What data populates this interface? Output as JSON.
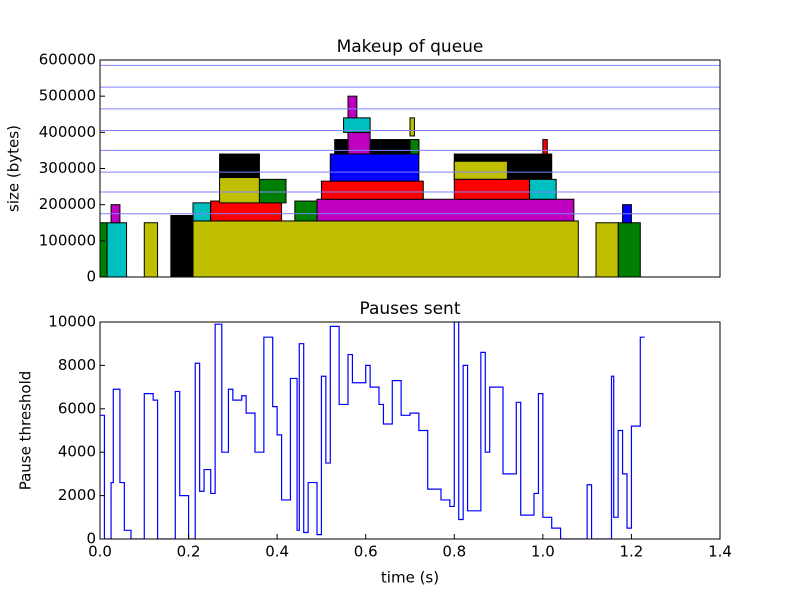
{
  "chart_data": [
    {
      "type": "blocks",
      "title": "Makeup of queue",
      "y_label": "size (bytes)",
      "xlim": [
        0,
        1.4
      ],
      "ylim": [
        0,
        600000
      ],
      "yticks": [
        0,
        100000,
        200000,
        300000,
        400000,
        500000,
        600000
      ],
      "hlines": {
        "color": "#8080ff",
        "values": [
          585000,
          525000,
          465000,
          405000,
          350000,
          290000,
          235000,
          175000
        ]
      },
      "blocks": [
        {
          "x": [
            0.0,
            0.016
          ],
          "y": [
            0,
            150000
          ],
          "color": "#008000"
        },
        {
          "x": [
            0.016,
            0.06
          ],
          "y": [
            0,
            150000
          ],
          "color": "#00bfbf"
        },
        {
          "x": [
            0.025,
            0.045
          ],
          "y": [
            150000,
            200000
          ],
          "color": "#bf00bf"
        },
        {
          "x": [
            0.1,
            0.13
          ],
          "y": [
            0,
            150000
          ],
          "color": "#bfbf00"
        },
        {
          "x": [
            0.16,
            0.21
          ],
          "y": [
            0,
            170000
          ],
          "color": "#000000"
        },
        {
          "x": [
            0.21,
            1.08
          ],
          "y": [
            0,
            155000
          ],
          "color": "#bfbf00"
        },
        {
          "x": [
            0.21,
            0.25
          ],
          "y": [
            155000,
            205000
          ],
          "color": "#00bfbf"
        },
        {
          "x": [
            0.25,
            0.41
          ],
          "y": [
            155000,
            210000
          ],
          "color": "#ff0000"
        },
        {
          "x": [
            0.44,
            0.49
          ],
          "y": [
            155000,
            210000
          ],
          "color": "#008000"
        },
        {
          "x": [
            0.49,
            1.07
          ],
          "y": [
            155000,
            215000
          ],
          "color": "#bf00bf"
        },
        {
          "x": [
            0.27,
            0.36
          ],
          "y": [
            275000,
            340000
          ],
          "color": "#000000"
        },
        {
          "x": [
            0.27,
            0.36
          ],
          "y": [
            205000,
            275000
          ],
          "color": "#bfbf00"
        },
        {
          "x": [
            0.36,
            0.42
          ],
          "y": [
            205000,
            270000
          ],
          "color": "#008000"
        },
        {
          "x": [
            0.53,
            0.72
          ],
          "y": [
            340000,
            380000
          ],
          "color": "#000000"
        },
        {
          "x": [
            0.5,
            0.73
          ],
          "y": [
            215000,
            265000
          ],
          "color": "#ff0000"
        },
        {
          "x": [
            0.52,
            0.72
          ],
          "y": [
            265000,
            340000
          ],
          "color": "#0000ff"
        },
        {
          "x": [
            0.56,
            0.61
          ],
          "y": [
            340000,
            400000
          ],
          "color": "#bf00bf"
        },
        {
          "x": [
            0.55,
            0.61
          ],
          "y": [
            400000,
            440000
          ],
          "color": "#00bfbf"
        },
        {
          "x": [
            0.56,
            0.58
          ],
          "y": [
            440000,
            500000
          ],
          "color": "#bf00bf"
        },
        {
          "x": [
            0.7,
            0.72
          ],
          "y": [
            340000,
            380000
          ],
          "color": "#008000"
        },
        {
          "x": [
            0.7,
            0.71
          ],
          "y": [
            390000,
            440000
          ],
          "color": "#bfbf00"
        },
        {
          "x": [
            0.8,
            1.02
          ],
          "y": [
            270000,
            340000
          ],
          "color": "#000000"
        },
        {
          "x": [
            0.8,
            0.92
          ],
          "y": [
            270000,
            320000
          ],
          "color": "#bfbf00"
        },
        {
          "x": [
            0.8,
            0.97
          ],
          "y": [
            215000,
            270000
          ],
          "color": "#ff0000"
        },
        {
          "x": [
            0.97,
            1.03
          ],
          "y": [
            215000,
            270000
          ],
          "color": "#00bfbf"
        },
        {
          "x": [
            1.0,
            1.01
          ],
          "y": [
            340000,
            380000
          ],
          "color": "#ff0000"
        },
        {
          "x": [
            1.17,
            1.22
          ],
          "y": [
            0,
            150000
          ],
          "color": "#008000"
        },
        {
          "x": [
            1.12,
            1.17
          ],
          "y": [
            0,
            150000
          ],
          "color": "#bfbf00"
        },
        {
          "x": [
            1.18,
            1.2
          ],
          "y": [
            150000,
            200000
          ],
          "color": "#0000ff"
        }
      ]
    },
    {
      "type": "line",
      "title": "Pauses sent",
      "y_label": "Pause threshold",
      "x_label": "time (s)",
      "step": "post",
      "xlim": [
        0,
        1.4
      ],
      "ylim": [
        0,
        10000
      ],
      "yticks": [
        0,
        2000,
        4000,
        6000,
        8000,
        10000
      ],
      "xticks": [
        {
          "value": 0,
          "label": "0.0"
        },
        0.2,
        0.4,
        0.6,
        0.8,
        {
          "value": 1,
          "label": "1.0"
        },
        1.2,
        1.4
      ],
      "x": [
        0.0,
        0.01,
        0.025,
        0.03,
        0.045,
        0.055,
        0.07,
        0.1,
        0.12,
        0.13,
        0.17,
        0.18,
        0.2,
        0.215,
        0.225,
        0.235,
        0.25,
        0.26,
        0.275,
        0.29,
        0.3,
        0.32,
        0.33,
        0.35,
        0.37,
        0.39,
        0.4,
        0.41,
        0.43,
        0.445,
        0.45,
        0.46,
        0.47,
        0.49,
        0.5,
        0.51,
        0.52,
        0.54,
        0.56,
        0.57,
        0.6,
        0.61,
        0.63,
        0.64,
        0.66,
        0.68,
        0.7,
        0.72,
        0.74,
        0.77,
        0.79,
        0.8,
        0.81,
        0.82,
        0.83,
        0.86,
        0.87,
        0.88,
        0.91,
        0.94,
        0.95,
        0.98,
        0.99,
        1.0,
        1.02,
        1.04,
        1.1,
        1.11,
        1.155,
        1.16,
        1.17,
        1.18,
        1.19,
        1.2,
        1.22,
        1.23
      ],
      "series": [
        {
          "color": "#0000ff",
          "values": [
            5700,
            0,
            2600,
            6900,
            2600,
            400,
            0,
            6700,
            6400,
            0,
            6800,
            2000,
            0,
            8100,
            2200,
            3200,
            2100,
            9900,
            4000,
            6900,
            6400,
            6600,
            5800,
            4000,
            9300,
            6100,
            4800,
            1800,
            7400,
            400,
            9000,
            300,
            2600,
            200,
            7500,
            3500,
            9800,
            6200,
            8500,
            7200,
            8000,
            7000,
            6200,
            5300,
            7300,
            5700,
            5800,
            5000,
            2300,
            1800,
            1500,
            10000,
            900,
            8000,
            1300,
            8600,
            4000,
            7000,
            3000,
            6300,
            1100,
            2100,
            6700,
            1000,
            500,
            0,
            2500,
            0,
            7500,
            1000,
            5000,
            3000,
            500,
            5200,
            9300,
            9300
          ]
        }
      ]
    }
  ]
}
